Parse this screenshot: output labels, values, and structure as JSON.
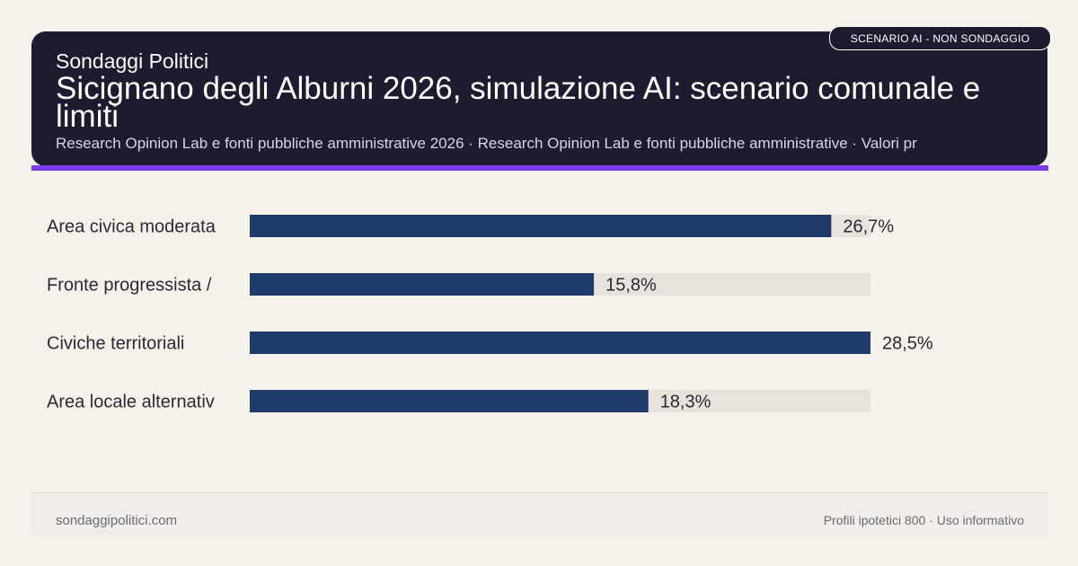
{
  "header": {
    "brand": "Sondaggi Politici",
    "title": "Sicignano degli Alburni 2026, simulazione AI: scenario comunale e limiti",
    "subtitle": "Research Opinion Lab e fonti pubbliche amministrative 2026 · Research Opinion Lab e fonti pubbliche amministrative · Valori pr",
    "badge": "SCENARIO AI - NON SONDAGGIO"
  },
  "colors": {
    "header_bg": "#1c1b30",
    "accent": "#7c3aed",
    "bar": "#1e3a6b",
    "track": "#e8e2dc",
    "page_bg": "#f6f2eb"
  },
  "chart_data": {
    "type": "bar",
    "orientation": "horizontal",
    "categories": [
      "Area civica moderata",
      "Fronte progressista /",
      "Civiche territoriali",
      "Area locale alternativ"
    ],
    "values": [
      26.7,
      15.8,
      28.5,
      18.3
    ],
    "value_labels": [
      "26,7%",
      "15,8%",
      "28,5%",
      "18,3%"
    ],
    "xlim": [
      0,
      28.5
    ],
    "grid": false,
    "legend": "none"
  },
  "footer": {
    "site": "sondaggipolitici.com",
    "note": "Profili ipotetici 800 · Uso informativo"
  }
}
